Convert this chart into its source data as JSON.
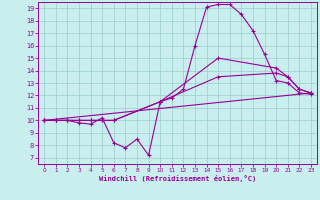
{
  "xlabel": "Windchill (Refroidissement éolien,°C)",
  "xlim": [
    -0.5,
    23.5
  ],
  "ylim": [
    6.5,
    19.5
  ],
  "yticks": [
    7,
    8,
    9,
    10,
    11,
    12,
    13,
    14,
    15,
    16,
    17,
    18,
    19
  ],
  "xticks": [
    0,
    1,
    2,
    3,
    4,
    5,
    6,
    7,
    8,
    9,
    10,
    11,
    12,
    13,
    14,
    15,
    16,
    17,
    18,
    19,
    20,
    21,
    22,
    23
  ],
  "bg_color": "#c8eeee",
  "line_color": "#990099",
  "grid_color": "#99cccc",
  "curve1_x": [
    0,
    1,
    2,
    3,
    4,
    5,
    6,
    7,
    8,
    9,
    10,
    11,
    12,
    13,
    14,
    15,
    16,
    17,
    18,
    19,
    20,
    21,
    22,
    23
  ],
  "curve1_y": [
    10,
    10,
    10,
    9.8,
    9.7,
    10.2,
    8.2,
    7.8,
    8.5,
    7.2,
    11.5,
    11.8,
    12.5,
    16.0,
    19.1,
    19.3,
    19.3,
    18.5,
    17.2,
    15.3,
    13.2,
    13.0,
    12.2,
    12.1
  ],
  "curve2_x": [
    0,
    1,
    2,
    3,
    4,
    5,
    6,
    10,
    15,
    20,
    21,
    22,
    23
  ],
  "curve2_y": [
    10,
    10,
    10,
    10,
    10,
    10,
    10,
    11.5,
    15.0,
    14.2,
    13.5,
    12.5,
    12.2
  ],
  "curve3_x": [
    0,
    1,
    2,
    3,
    4,
    5,
    6,
    10,
    15,
    20,
    21,
    22,
    23
  ],
  "curve3_y": [
    10,
    10,
    10,
    10,
    10,
    10,
    10,
    11.5,
    13.5,
    13.8,
    13.5,
    12.5,
    12.2
  ],
  "curve4_x": [
    0,
    23
  ],
  "curve4_y": [
    10,
    12.2
  ]
}
